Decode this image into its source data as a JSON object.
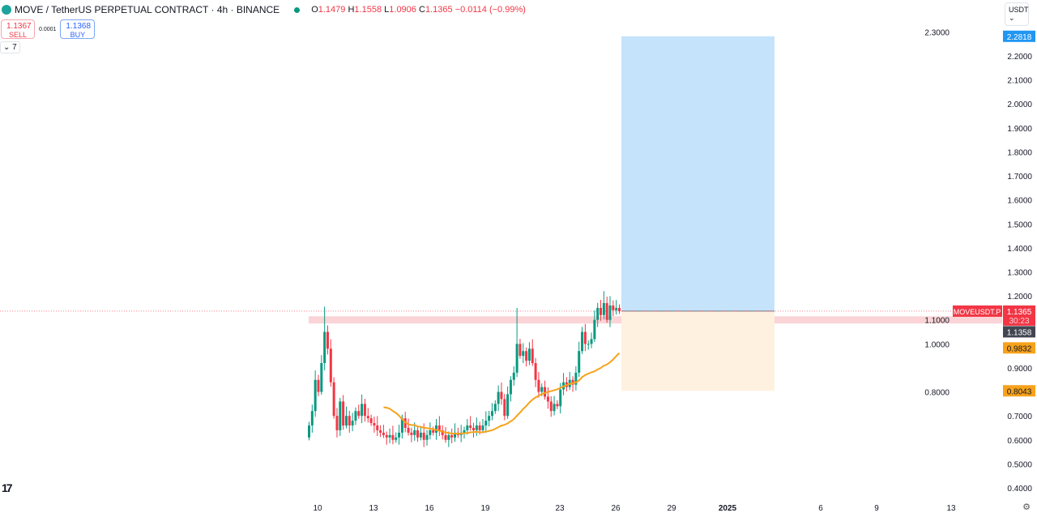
{
  "header": {
    "symbol_title": "MOVE / TetherUS PERPETUAL CONTRACT · 4h · BINANCE",
    "ohlc": {
      "o_label": "O",
      "o": "1.1479",
      "h_label": "H",
      "h": "1.1558",
      "l_label": "L",
      "l": "1.0906",
      "c_label": "C",
      "c": "1.1365",
      "change": "−0.0114 (−0.99%)"
    },
    "market_status": "open"
  },
  "trade": {
    "sell_price": "1.1367",
    "sell_label": "SELL",
    "spread": "0.0001",
    "buy_price": "1.1368",
    "buy_label": "BUY"
  },
  "indicators_toggle": "⌄ 7",
  "currency": "USDT ⌄",
  "colors": {
    "up": "#089981",
    "down": "#f23645",
    "ma": "#f7a21b",
    "target_zone": "#c5e3fb",
    "stop_zone": "#fff1df",
    "resistance": "#f9c9cd",
    "label_orange": "#f7a21b",
    "label_blue": "#2196f3"
  },
  "chart_data": {
    "type": "candlestick",
    "interval": "4h",
    "x_ticks": [
      "10",
      "13",
      "16",
      "19",
      "23",
      "26",
      "29",
      "2025",
      "6",
      "9",
      "13"
    ],
    "y_ticks": [
      "0.4000",
      "0.5000",
      "0.6000",
      "0.7000",
      "0.8000",
      "0.9000",
      "1.0000",
      "1.1000",
      "1.2000",
      "1.3000",
      "1.4000",
      "1.5000",
      "1.6000",
      "1.7000",
      "1.8000",
      "1.9000",
      "2.0000",
      "2.1000",
      "2.2000",
      "2.3000"
    ],
    "ylim": [
      0.4,
      2.3
    ],
    "first_candle": "2024-12-09 12:00",
    "closes": [
      0.66,
      0.72,
      0.85,
      0.8,
      0.92,
      1.05,
      0.98,
      0.84,
      0.7,
      0.64,
      0.76,
      0.66,
      0.7,
      0.66,
      0.68,
      0.72,
      0.7,
      0.75,
      0.7,
      0.69,
      0.67,
      0.66,
      0.64,
      0.63,
      0.62,
      0.61,
      0.62,
      0.6,
      0.61,
      0.63,
      0.69,
      0.65,
      0.63,
      0.62,
      0.64,
      0.61,
      0.63,
      0.6,
      0.62,
      0.64,
      0.63,
      0.66,
      0.64,
      0.62,
      0.6,
      0.62,
      0.61,
      0.63,
      0.62,
      0.63,
      0.64,
      0.66,
      0.65,
      0.64,
      0.66,
      0.64,
      0.66,
      0.68,
      0.7,
      0.72,
      0.75,
      0.8,
      0.77,
      0.7,
      0.79,
      0.85,
      0.88,
      1.0,
      0.95,
      0.97,
      0.93,
      0.98,
      0.92,
      0.85,
      0.8,
      0.82,
      0.78,
      0.76,
      0.72,
      0.75,
      0.74,
      0.81,
      0.84,
      0.82,
      0.85,
      0.83,
      0.88,
      0.97,
      1.05,
      1.0,
      1.0,
      1.02,
      1.1,
      1.15,
      1.12,
      1.17,
      1.1,
      1.16,
      1.14,
      1.15,
      1.1365
    ],
    "first_open": 0.61,
    "spike_highs": {
      "5": 1.155,
      "67": 1.15,
      "95": 1.22
    },
    "moving_average_period": 25,
    "position": {
      "type": "long",
      "entry": 1.1365,
      "target": 2.2818,
      "stop": 0.8043,
      "start": "2024-12-26 20:00",
      "end": "2025-01-04"
    },
    "resistance_zone": [
      1.085,
      1.115
    ],
    "price_labels": [
      {
        "text": "2.2818",
        "value": 2.2818,
        "color": "#2196f3"
      },
      {
        "text": "1.1358",
        "value": 1.1358,
        "color": "#434651"
      },
      {
        "text": "0.9832",
        "value": 0.9832,
        "color": "#f7a21b"
      },
      {
        "text": "0.8043",
        "value": 0.8043,
        "color": "#f7a21b"
      }
    ],
    "last_price": {
      "symbol": "MOVEUSDT.P",
      "price": "1.1365",
      "countdown": "30:23",
      "value": 1.1365
    }
  }
}
